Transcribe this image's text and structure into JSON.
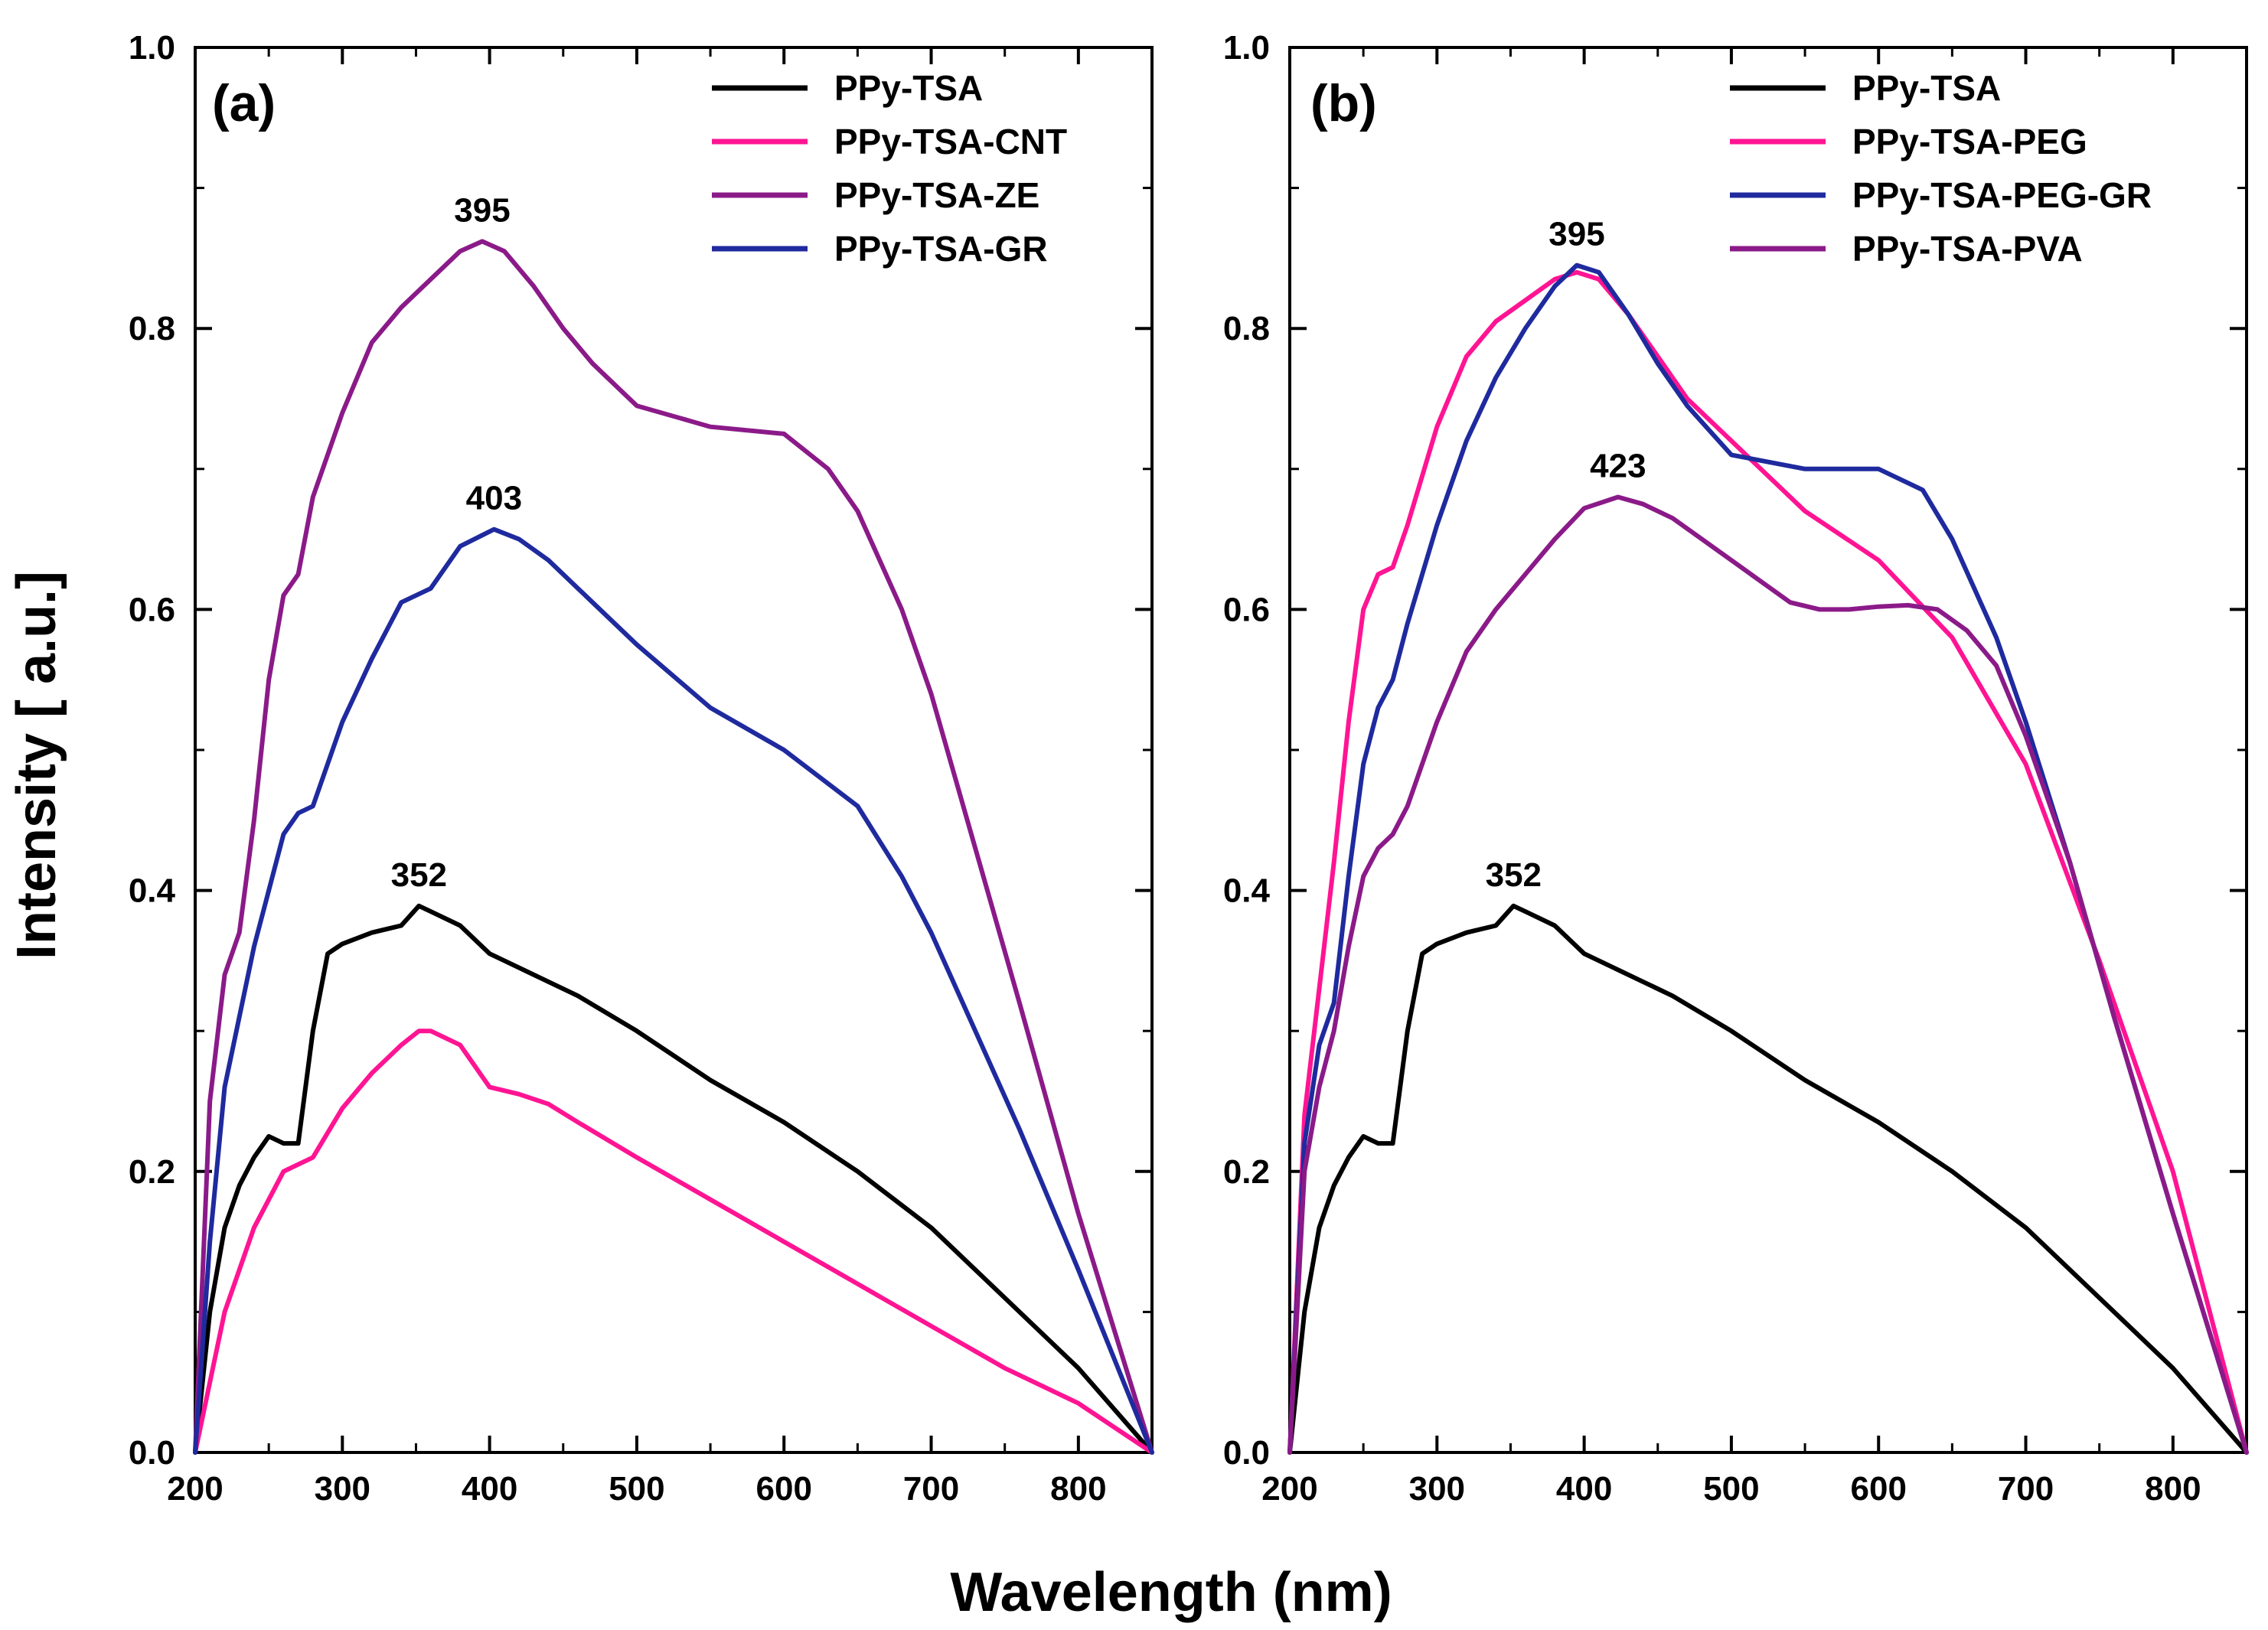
{
  "figure": {
    "ylabel": "Intensity [ a.u.]",
    "xlabel": "Wavelength (nm)"
  },
  "chart_data": [
    {
      "type": "line",
      "panel_label": "(a)",
      "xlim": [
        200,
        850
      ],
      "ylim": [
        0.0,
        1.0
      ],
      "x_ticks": [
        200,
        300,
        400,
        500,
        600,
        700,
        800
      ],
      "y_ticks": [
        "0.0",
        "0.2",
        "0.4",
        "0.6",
        "0.8",
        "1.0"
      ],
      "grid": false,
      "legend_position": "top-right",
      "series": [
        {
          "name": "PPy-TSA",
          "color": "#000000",
          "x": [
            200,
            210,
            220,
            230,
            240,
            250,
            260,
            270,
            280,
            290,
            300,
            320,
            340,
            352,
            360,
            380,
            400,
            420,
            440,
            460,
            500,
            550,
            600,
            650,
            700,
            750,
            800,
            850
          ],
          "y": [
            0.0,
            0.1,
            0.16,
            0.19,
            0.21,
            0.225,
            0.22,
            0.22,
            0.3,
            0.355,
            0.362,
            0.37,
            0.375,
            0.389,
            0.385,
            0.375,
            0.355,
            0.345,
            0.335,
            0.325,
            0.3,
            0.265,
            0.235,
            0.2,
            0.16,
            0.11,
            0.06,
            0.0
          ]
        },
        {
          "name": "PPy-TSA-CNT",
          "color": "#ff1493",
          "x": [
            200,
            210,
            220,
            240,
            260,
            280,
            300,
            320,
            340,
            352,
            360,
            380,
            400,
            420,
            440,
            460,
            500,
            550,
            600,
            650,
            700,
            750,
            800,
            850
          ],
          "y": [
            0.0,
            0.05,
            0.1,
            0.16,
            0.2,
            0.21,
            0.245,
            0.27,
            0.29,
            0.3,
            0.3,
            0.29,
            0.26,
            0.255,
            0.248,
            0.235,
            0.21,
            0.18,
            0.15,
            0.12,
            0.09,
            0.06,
            0.035,
            0.0
          ]
        },
        {
          "name": "PPy-TSA-ZE",
          "color": "#8b1a89",
          "x": [
            200,
            210,
            220,
            230,
            240,
            250,
            260,
            270,
            280,
            300,
            320,
            340,
            360,
            380,
            395,
            410,
            430,
            450,
            470,
            500,
            550,
            600,
            630,
            650,
            680,
            700,
            730,
            760,
            800,
            850
          ],
          "y": [
            0.0,
            0.25,
            0.34,
            0.37,
            0.45,
            0.55,
            0.61,
            0.625,
            0.68,
            0.74,
            0.79,
            0.815,
            0.835,
            0.855,
            0.862,
            0.855,
            0.83,
            0.8,
            0.775,
            0.745,
            0.73,
            0.725,
            0.7,
            0.67,
            0.6,
            0.54,
            0.43,
            0.32,
            0.17,
            0.0
          ]
        },
        {
          "name": "PPy-TSA-GR",
          "color": "#1f2a9e",
          "x": [
            200,
            210,
            220,
            240,
            260,
            270,
            280,
            300,
            320,
            340,
            360,
            380,
            403,
            420,
            440,
            460,
            500,
            550,
            600,
            650,
            680,
            700,
            730,
            760,
            800,
            850
          ],
          "y": [
            0.0,
            0.15,
            0.26,
            0.36,
            0.44,
            0.455,
            0.46,
            0.52,
            0.565,
            0.605,
            0.615,
            0.645,
            0.657,
            0.65,
            0.635,
            0.615,
            0.575,
            0.53,
            0.5,
            0.46,
            0.41,
            0.37,
            0.3,
            0.23,
            0.13,
            0.0
          ]
        }
      ],
      "annotations": [
        {
          "text": "395",
          "x": 395,
          "y": 0.862
        },
        {
          "text": "403",
          "x": 403,
          "y": 0.657
        },
        {
          "text": "352",
          "x": 352,
          "y": 0.389
        }
      ]
    },
    {
      "type": "line",
      "panel_label": "(b)",
      "xlim": [
        200,
        850
      ],
      "ylim": [
        0.0,
        1.0
      ],
      "x_ticks": [
        200,
        300,
        400,
        500,
        600,
        700,
        800
      ],
      "y_ticks": [
        "0.0",
        "0.2",
        "0.4",
        "0.6",
        "0.8",
        "1.0"
      ],
      "grid": false,
      "legend_position": "top-right",
      "series": [
        {
          "name": "PPy-TSA",
          "color": "#000000",
          "x": [
            200,
            210,
            220,
            230,
            240,
            250,
            260,
            270,
            280,
            290,
            300,
            320,
            340,
            352,
            360,
            380,
            400,
            420,
            440,
            460,
            500,
            550,
            600,
            650,
            700,
            750,
            800,
            850
          ],
          "y": [
            0.0,
            0.1,
            0.16,
            0.19,
            0.21,
            0.225,
            0.22,
            0.22,
            0.3,
            0.355,
            0.362,
            0.37,
            0.375,
            0.389,
            0.385,
            0.375,
            0.355,
            0.345,
            0.335,
            0.325,
            0.3,
            0.265,
            0.235,
            0.2,
            0.16,
            0.11,
            0.06,
            0.0
          ]
        },
        {
          "name": "PPy-TSA-PEG",
          "color": "#ff1493",
          "x": [
            200,
            210,
            220,
            230,
            240,
            250,
            260,
            270,
            280,
            300,
            320,
            340,
            360,
            380,
            395,
            410,
            430,
            450,
            470,
            500,
            550,
            600,
            650,
            700,
            750,
            800,
            850
          ],
          "y": [
            0.0,
            0.24,
            0.33,
            0.42,
            0.52,
            0.6,
            0.625,
            0.63,
            0.66,
            0.73,
            0.78,
            0.805,
            0.82,
            0.835,
            0.84,
            0.835,
            0.81,
            0.78,
            0.75,
            0.72,
            0.67,
            0.635,
            0.58,
            0.49,
            0.35,
            0.2,
            0.0
          ]
        },
        {
          "name": "PPy-TSA-PEG-GR",
          "color": "#1f2a9e",
          "x": [
            200,
            210,
            220,
            230,
            240,
            250,
            260,
            270,
            280,
            300,
            320,
            340,
            360,
            380,
            395,
            410,
            430,
            450,
            470,
            500,
            550,
            600,
            630,
            650,
            680,
            700,
            730,
            760,
            800,
            850
          ],
          "y": [
            0.0,
            0.22,
            0.29,
            0.32,
            0.41,
            0.49,
            0.53,
            0.55,
            0.59,
            0.66,
            0.72,
            0.765,
            0.8,
            0.83,
            0.845,
            0.84,
            0.81,
            0.775,
            0.745,
            0.71,
            0.7,
            0.7,
            0.685,
            0.65,
            0.58,
            0.52,
            0.42,
            0.31,
            0.17,
            0.0
          ]
        },
        {
          "name": "PPy-TSA-PVA",
          "color": "#8b1a89",
          "x": [
            200,
            210,
            220,
            230,
            240,
            250,
            260,
            270,
            280,
            300,
            320,
            340,
            360,
            380,
            400,
            423,
            440,
            460,
            480,
            500,
            520,
            540,
            560,
            580,
            600,
            620,
            640,
            660,
            680,
            700,
            730,
            760,
            800,
            850
          ],
          "y": [
            0.0,
            0.2,
            0.26,
            0.3,
            0.36,
            0.41,
            0.43,
            0.44,
            0.46,
            0.52,
            0.57,
            0.6,
            0.625,
            0.65,
            0.672,
            0.68,
            0.675,
            0.665,
            0.65,
            0.635,
            0.62,
            0.605,
            0.6,
            0.6,
            0.602,
            0.603,
            0.6,
            0.585,
            0.56,
            0.51,
            0.42,
            0.31,
            0.17,
            0.0
          ]
        }
      ],
      "annotations": [
        {
          "text": "395",
          "x": 395,
          "y": 0.845
        },
        {
          "text": "423",
          "x": 423,
          "y": 0.68
        },
        {
          "text": "352",
          "x": 352,
          "y": 0.389
        }
      ]
    }
  ]
}
